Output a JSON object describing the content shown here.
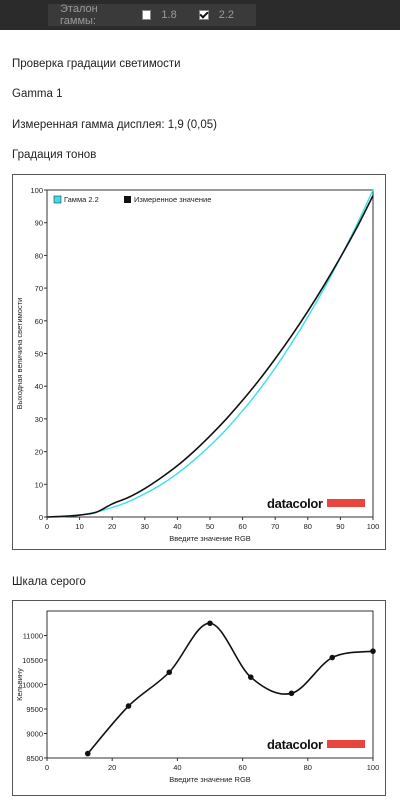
{
  "toolbar": {
    "label": "Эталон гаммы:",
    "options": [
      {
        "label": "1.8",
        "checked": false
      },
      {
        "label": "2.2",
        "checked": true
      }
    ]
  },
  "content": {
    "section_title": "Проверка градации светимости",
    "profile_name": "Gamma 1",
    "measured_gamma": "Измеренная гамма дисплея: 1,9 (0,05)",
    "tone_title": "Градация тонов",
    "gray_title": "Шкала серого"
  },
  "logo_text": "datacolor",
  "colors": {
    "reference": "#38e0e8",
    "measured": "#111111",
    "logo_bar": "#e8453c"
  },
  "chart_data": [
    {
      "type": "line",
      "xlabel": "Введите значение RGB",
      "ylabel": "Выходная величина светимости",
      "xlim": [
        0,
        100
      ],
      "ylim": [
        0,
        100
      ],
      "xticks": [
        0,
        10,
        20,
        30,
        40,
        50,
        60,
        70,
        80,
        90,
        100
      ],
      "yticks": [
        0,
        10,
        20,
        30,
        40,
        50,
        60,
        70,
        80,
        90,
        100
      ],
      "legend_position": "top-left",
      "series": [
        {
          "name": "Гамма 2.2",
          "x": [
            0,
            5,
            10,
            15,
            20,
            25,
            30,
            35,
            40,
            45,
            50,
            55,
            60,
            65,
            70,
            75,
            80,
            85,
            90,
            95,
            100
          ],
          "y": [
            0,
            0.1,
            0.6,
            1.5,
            2.9,
            4.7,
            7.1,
            9.9,
            13.3,
            17.3,
            21.8,
            26.8,
            32.5,
            38.7,
            45.6,
            53.1,
            61.2,
            69.9,
            79.3,
            89.3,
            100
          ]
        },
        {
          "name": "Измеренное значение",
          "x": [
            0,
            5,
            10,
            15,
            20,
            25,
            30,
            35,
            40,
            45,
            50,
            55,
            60,
            65,
            70,
            75,
            80,
            85,
            90,
            95,
            100
          ],
          "y": [
            0,
            0.2,
            0.6,
            1.4,
            4.0,
            6.0,
            8.7,
            12.0,
            15.7,
            20.0,
            24.8,
            30.0,
            35.7,
            41.8,
            48.4,
            55.4,
            62.9,
            70.9,
            79.4,
            88.4,
            98.3
          ]
        }
      ]
    },
    {
      "type": "line",
      "xlabel": "Введите значение RGB",
      "ylabel": "Кельвину",
      "xlim": [
        0,
        100
      ],
      "ylim": [
        8500,
        11500
      ],
      "xticks": [
        0,
        20,
        40,
        60,
        80,
        100
      ],
      "yticks": [
        8500,
        9000,
        9500,
        10000,
        10500,
        11000
      ],
      "series": [
        {
          "x": [
            12.5,
            25,
            37.5,
            50,
            62.5,
            75,
            87.5,
            100
          ],
          "y": [
            8590,
            9560,
            10250,
            11250,
            10150,
            9820,
            10550,
            10680
          ]
        }
      ]
    }
  ]
}
